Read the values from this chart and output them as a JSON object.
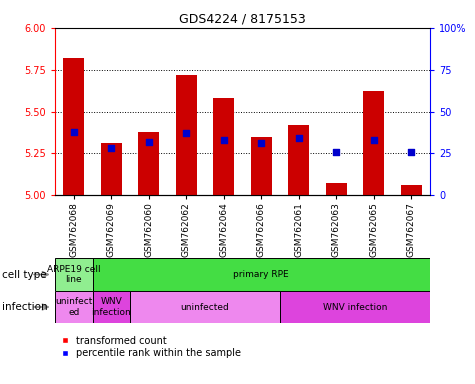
{
  "title": "GDS4224 / 8175153",
  "samples": [
    "GSM762068",
    "GSM762069",
    "GSM762060",
    "GSM762062",
    "GSM762064",
    "GSM762066",
    "GSM762061",
    "GSM762063",
    "GSM762065",
    "GSM762067"
  ],
  "transformed_count": [
    5.82,
    5.31,
    5.38,
    5.72,
    5.58,
    5.35,
    5.42,
    5.07,
    5.62,
    5.06
  ],
  "percentile_rank": [
    38,
    28,
    32,
    37,
    33,
    31,
    34,
    26,
    33,
    26
  ],
  "y_min": 5.0,
  "y_max": 6.0,
  "y_ticks": [
    5.0,
    5.25,
    5.5,
    5.75,
    6.0
  ],
  "y2_ticks": [
    0,
    25,
    50,
    75,
    100
  ],
  "y2_labels": [
    "0",
    "25",
    "50",
    "75",
    "100%"
  ],
  "bar_color": "#cc0000",
  "dot_color": "#0000cc",
  "cell_type_row": [
    {
      "label": "ARPE19 cell\nline",
      "start": 0,
      "end": 1,
      "color": "#90ee90"
    },
    {
      "label": "primary RPE",
      "start": 1,
      "end": 10,
      "color": "#44dd44"
    }
  ],
  "infection_row": [
    {
      "label": "uninfect\ned",
      "start": 0,
      "end": 1,
      "color": "#ee88ee"
    },
    {
      "label": "WNV\ninfection",
      "start": 1,
      "end": 2,
      "color": "#dd44dd"
    },
    {
      "label": "uninfected",
      "start": 2,
      "end": 6,
      "color": "#ee88ee"
    },
    {
      "label": "WNV infection",
      "start": 6,
      "end": 10,
      "color": "#dd44dd"
    }
  ],
  "legend_labels": [
    "transformed count",
    "percentile rank within the sample"
  ],
  "cell_type_label": "cell type",
  "infection_label": "infection"
}
